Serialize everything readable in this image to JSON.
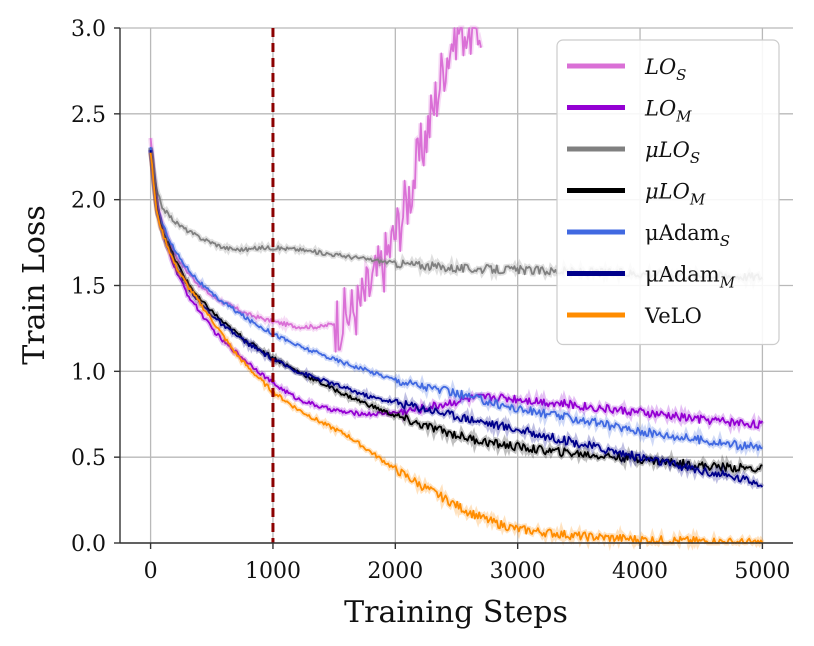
{
  "chart_data": {
    "type": "line",
    "title": "",
    "xlabel": "Training Steps",
    "ylabel": "Train Loss",
    "xlim": [
      -250,
      5250
    ],
    "ylim": [
      0.0,
      3.0
    ],
    "xticks": [
      0,
      1000,
      2000,
      3000,
      4000,
      5000
    ],
    "xtick_labels": [
      "0",
      "1000",
      "2000",
      "3000",
      "4000",
      "5000"
    ],
    "yticks": [
      0.0,
      0.5,
      1.0,
      1.5,
      2.0,
      2.5,
      3.0
    ],
    "ytick_labels": [
      "0.0",
      "0.5",
      "1.0",
      "1.5",
      "2.0",
      "2.5",
      "3.0"
    ],
    "grid": true,
    "legend_position": "top-right",
    "vline": {
      "x": 1000,
      "color": "#8b0000",
      "style": "dashed"
    },
    "series": [
      {
        "name": "LO_S",
        "label_main": "LO",
        "label_sub": "S",
        "italic": true,
        "color": "#da70d6",
        "x": [
          0,
          50,
          100,
          200,
          300,
          400,
          500,
          600,
          800,
          1000,
          1200,
          1400,
          1500,
          1600,
          1700,
          1800,
          1900,
          2000,
          2100,
          2200,
          2300,
          2400,
          2500,
          2600,
          2700
        ],
        "y": [
          2.35,
          2.0,
          1.85,
          1.68,
          1.58,
          1.5,
          1.44,
          1.4,
          1.33,
          1.29,
          1.26,
          1.26,
          1.28,
          1.32,
          1.38,
          1.5,
          1.62,
          1.8,
          2.0,
          2.25,
          2.5,
          2.8,
          3.0,
          3.0,
          3.0
        ]
      },
      {
        "name": "LO_M",
        "label_main": "LO",
        "label_sub": "M",
        "italic": true,
        "color": "#9400d3",
        "x": [
          0,
          50,
          100,
          200,
          300,
          400,
          500,
          600,
          800,
          1000,
          1200,
          1400,
          1600,
          1800,
          2000,
          2200,
          2400,
          2600,
          2800,
          3000,
          3500,
          4000,
          4500,
          5000
        ],
        "y": [
          2.3,
          1.95,
          1.8,
          1.6,
          1.45,
          1.35,
          1.25,
          1.17,
          1.05,
          0.93,
          0.84,
          0.79,
          0.76,
          0.75,
          0.76,
          0.78,
          0.81,
          0.84,
          0.85,
          0.84,
          0.8,
          0.76,
          0.72,
          0.69
        ]
      },
      {
        "name": "μLO_S",
        "label_main": "μLO",
        "label_sub": "S",
        "italic": true,
        "color": "#808080",
        "x": [
          0,
          50,
          100,
          200,
          300,
          400,
          500,
          600,
          700,
          800,
          900,
          1000,
          1200,
          1500,
          1800,
          2000,
          2500,
          3000,
          3500,
          4000,
          4500,
          5000
        ],
        "y": [
          2.3,
          2.05,
          1.95,
          1.87,
          1.82,
          1.78,
          1.75,
          1.72,
          1.71,
          1.71,
          1.72,
          1.72,
          1.71,
          1.68,
          1.65,
          1.63,
          1.6,
          1.59,
          1.58,
          1.57,
          1.56,
          1.55
        ]
      },
      {
        "name": "μLO_M",
        "label_main": "μLO",
        "label_sub": "M",
        "italic": true,
        "color": "#000000",
        "x": [
          0,
          50,
          100,
          200,
          300,
          400,
          500,
          600,
          800,
          1000,
          1200,
          1400,
          1600,
          1800,
          2000,
          2200,
          2400,
          2600,
          2800,
          3000,
          3200,
          3500,
          4000,
          4500,
          5000
        ],
        "y": [
          2.3,
          1.95,
          1.82,
          1.65,
          1.52,
          1.42,
          1.35,
          1.28,
          1.17,
          1.08,
          1.0,
          0.93,
          0.86,
          0.8,
          0.74,
          0.69,
          0.65,
          0.61,
          0.58,
          0.56,
          0.54,
          0.52,
          0.49,
          0.45,
          0.43
        ]
      },
      {
        "name": "μAdam_S",
        "label_main": "μAdam",
        "label_sub": "S",
        "italic": false,
        "color": "#4169e1",
        "x": [
          0,
          50,
          100,
          200,
          300,
          400,
          500,
          600,
          800,
          1000,
          1200,
          1500,
          2000,
          2500,
          3000,
          3500,
          4000,
          4500,
          5000
        ],
        "y": [
          2.3,
          1.95,
          1.85,
          1.7,
          1.6,
          1.52,
          1.45,
          1.4,
          1.3,
          1.22,
          1.15,
          1.07,
          0.95,
          0.87,
          0.78,
          0.72,
          0.65,
          0.6,
          0.55
        ]
      },
      {
        "name": "μAdam_M",
        "label_main": "μAdam",
        "label_sub": "M",
        "italic": false,
        "color": "#00008b",
        "x": [
          0,
          50,
          100,
          200,
          300,
          400,
          500,
          600,
          800,
          1000,
          1200,
          1400,
          1600,
          1800,
          2000,
          2200,
          2500,
          3000,
          3500,
          4000,
          4500,
          5000
        ],
        "y": [
          2.3,
          1.95,
          1.8,
          1.62,
          1.5,
          1.4,
          1.33,
          1.26,
          1.16,
          1.07,
          1.0,
          0.95,
          0.9,
          0.85,
          0.82,
          0.79,
          0.74,
          0.66,
          0.58,
          0.5,
          0.42,
          0.35
        ]
      },
      {
        "name": "VeLO",
        "label_main": "VeLO",
        "label_sub": "",
        "italic": false,
        "color": "#ff8c00",
        "x": [
          0,
          50,
          100,
          200,
          300,
          400,
          500,
          600,
          700,
          800,
          900,
          1000,
          1200,
          1400,
          1600,
          1800,
          2000,
          2200,
          2400,
          2600,
          2800,
          3000,
          3500,
          4000,
          4500,
          5000
        ],
        "y": [
          2.28,
          1.92,
          1.8,
          1.62,
          1.5,
          1.4,
          1.3,
          1.2,
          1.1,
          1.02,
          0.95,
          0.88,
          0.78,
          0.7,
          0.63,
          0.53,
          0.43,
          0.34,
          0.26,
          0.18,
          0.12,
          0.08,
          0.04,
          0.02,
          0.01,
          0.0
        ]
      }
    ]
  }
}
